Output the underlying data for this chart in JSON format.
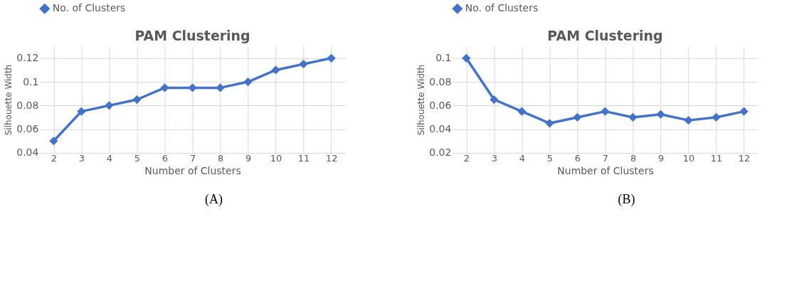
{
  "chart_data": [
    {
      "type": "line",
      "title": "PAM Clustering",
      "xlabel": "Number of Clusters",
      "ylabel": "Silhouette Width",
      "categories": [
        "2",
        "3",
        "4",
        "5",
        "6",
        "7",
        "8",
        "9",
        "10",
        "11",
        "12"
      ],
      "series": [
        {
          "name": "No. of Clusters",
          "color": "#4472c4",
          "values": [
            0.05,
            0.075,
            0.08,
            0.085,
            0.095,
            0.095,
            0.095,
            0.1,
            0.11,
            0.115,
            0.12
          ]
        }
      ],
      "ylim": [
        0.04,
        0.13
      ],
      "yticks": [
        0.04,
        0.06,
        0.08,
        0.1,
        0.12
      ],
      "grid": true,
      "legend": "top",
      "marker": "diamond",
      "line_style": "solid",
      "annotations": [
        "(A)"
      ]
    },
    {
      "type": "line",
      "title": "PAM Clustering",
      "xlabel": "Number of Clusters",
      "ylabel": "Silhouette Width",
      "categories": [
        "2",
        "3",
        "4",
        "5",
        "6",
        "7",
        "8",
        "9",
        "10",
        "11",
        "12"
      ],
      "series": [
        {
          "name": "No. of Clusters",
          "color": "#4472c4",
          "values": [
            0.1,
            0.065,
            0.055,
            0.045,
            0.05,
            0.055,
            0.05,
            0.0525,
            0.0475,
            0.05,
            0.055
          ]
        }
      ],
      "ylim": [
        0.02,
        0.11
      ],
      "yticks": [
        0.02,
        0.04,
        0.06,
        0.08,
        0.1
      ],
      "grid": true,
      "legend": "top",
      "marker": "diamond",
      "line_style": "solid",
      "annotations": [
        "(B)"
      ]
    }
  ]
}
